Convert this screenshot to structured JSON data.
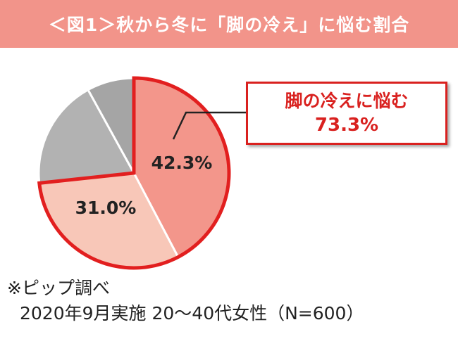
{
  "title": "＜図1＞秋から冬に「脚の冷え」に悩む割合",
  "callout": {
    "label": "脚の冷えに悩む",
    "value": "73.3%"
  },
  "chart_data": {
    "type": "pie",
    "title": "＜図1＞秋から冬に「脚の冷え」に悩む割合",
    "slices": [
      {
        "value": 42.3,
        "label": "42.3%",
        "color": "#f3968b"
      },
      {
        "value": 31.0,
        "label": "31.0%",
        "color": "#f8c7b8"
      },
      {
        "value": 18.7,
        "label": "",
        "color": "#b2b2b2"
      },
      {
        "value": 8.0,
        "label": "",
        "color": "#a5a5a5"
      }
    ],
    "highlight_color": "#e21f1f",
    "highlighted_slices": [
      0,
      1
    ]
  },
  "note": {
    "line1": "※ピップ調べ",
    "line2": "2020年9月実施 20～40代女性（N=600）"
  }
}
